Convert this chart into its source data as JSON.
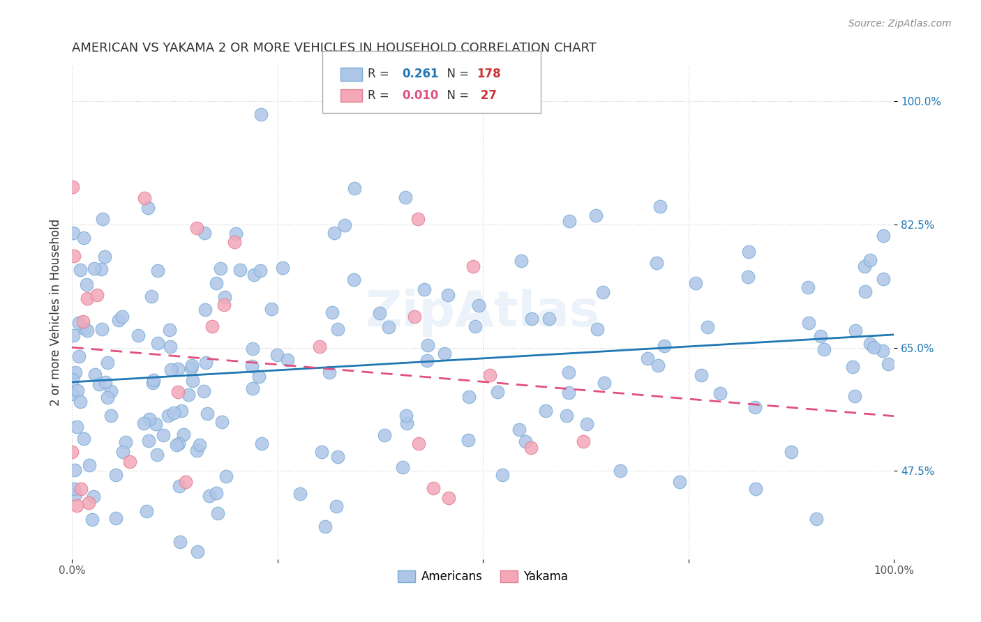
{
  "title": "AMERICAN VS YAKAMA 2 OR MORE VEHICLES IN HOUSEHOLD CORRELATION CHART",
  "source": "Source: ZipAtlas.com",
  "ylabel": "2 or more Vehicles in Household",
  "yticks": [
    "100.0%",
    "82.5%",
    "65.0%",
    "47.5%"
  ],
  "ytick_vals": [
    1.0,
    0.825,
    0.65,
    0.475
  ],
  "blue_color": "#aec6e8",
  "pink_color": "#f4a7b9",
  "line_blue": "#1f77b4",
  "line_pink": "#e05080",
  "background": "#ffffff",
  "watermark": "ZipAtlas",
  "americans_R": 0.261,
  "americans_N": 178,
  "yakama_R": 0.01,
  "yakama_N": 27,
  "xlim": [
    0.0,
    1.0
  ],
  "ylim": [
    0.35,
    1.05
  ]
}
